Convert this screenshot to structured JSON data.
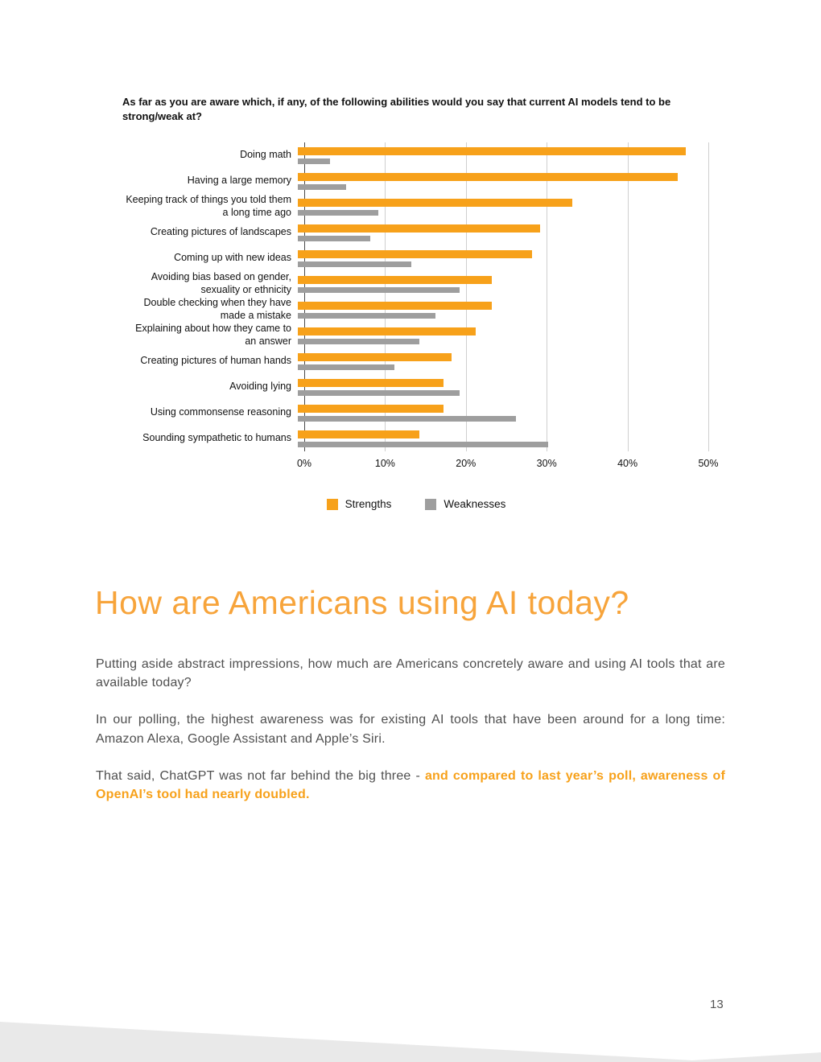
{
  "colors": {
    "accent_orange": "#F7A11A",
    "heading_orange": "#F7A43B",
    "bar_gray": "#9E9E9E",
    "footer_gray": "#E9E9E9"
  },
  "chart_data": {
    "type": "bar",
    "orientation": "horizontal",
    "title": "As far as you are aware which, if any, of the following abilities would you say that current AI models tend to be strong/weak at?",
    "categories": [
      "Doing math",
      "Having a large memory",
      "Keeping track of things you told them a long time ago",
      "Creating pictures of landscapes",
      "Coming up with new ideas",
      "Avoiding bias based on gender, sexuality or ethnicity",
      "Double checking when they have made a mistake",
      "Explaining about how they came to an answer",
      "Creating pictures of human hands",
      "Avoiding lying",
      "Using commonsense reasoning",
      "Sounding sympathetic to humans"
    ],
    "series": [
      {
        "name": "Strengths",
        "color": "#F7A11A",
        "values": [
          48,
          47,
          34,
          30,
          29,
          24,
          24,
          22,
          19,
          18,
          18,
          15
        ]
      },
      {
        "name": "Weaknesses",
        "color": "#9E9E9E",
        "values": [
          4,
          6,
          10,
          9,
          14,
          20,
          17,
          15,
          12,
          20,
          27,
          31
        ]
      }
    ],
    "x_ticks": [
      "0%",
      "10%",
      "20%",
      "30%",
      "40%",
      "50%"
    ],
    "xlim": [
      0,
      50
    ],
    "grid": true,
    "legend_position": "bottom"
  },
  "section": {
    "heading": "How are Americans using AI today?",
    "paragraph1": "Putting aside abstract impressions, how much are Americans concretely aware and using AI tools that are available today?",
    "paragraph2": "In our polling, the highest awareness was for existing AI tools that have been around for a long time: Amazon Alexa, Google Assistant and Apple’s Siri.",
    "paragraph3_normal": "That said, ChatGPT was not far behind the big three - ",
    "paragraph3_highlight": "and compared to last year’s poll, awareness of OpenAI’s tool had nearly doubled."
  },
  "page": {
    "number": "13"
  }
}
